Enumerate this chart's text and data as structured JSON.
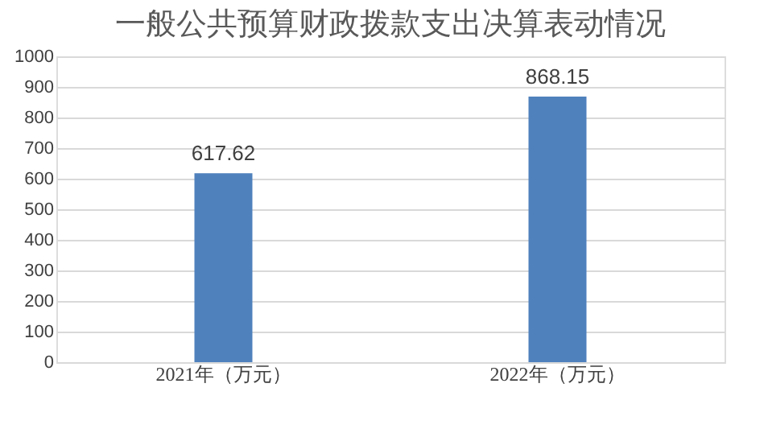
{
  "chart_data": {
    "type": "bar",
    "title": "一般公共预算财政拨款支出决算表动情况",
    "categories": [
      "2021年（万元）",
      "2022年（万元）"
    ],
    "values": [
      617.62,
      868.15
    ],
    "color": "#4f81bd",
    "ylim": [
      0,
      1000
    ],
    "yticks": [
      0,
      100,
      200,
      300,
      400,
      500,
      600,
      700,
      800,
      900,
      1000
    ],
    "grid": "y",
    "data_labels": true
  }
}
